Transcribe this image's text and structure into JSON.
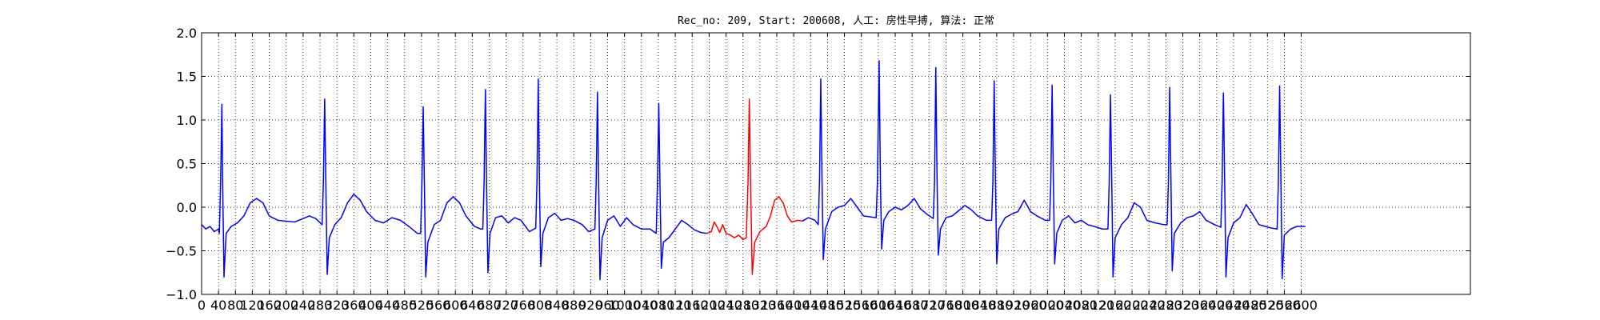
{
  "chart_data": {
    "type": "line",
    "title": "Rec_no: 209, Start: 200608, 人工: 房性早搏, 算法: 正常",
    "xlabel": "",
    "ylabel": "",
    "xlim": [
      0,
      3000
    ],
    "ylim": [
      -1.0,
      2.0
    ],
    "grid": true,
    "x_ticks": [
      0,
      40,
      80,
      120,
      160,
      200,
      240,
      280,
      320,
      360,
      400,
      440,
      480,
      520,
      560,
      600,
      640,
      680,
      720,
      760,
      800,
      840,
      880,
      920,
      960,
      1000,
      1040,
      1080,
      1120,
      1160,
      1200,
      1240,
      1280,
      1320,
      1360,
      1400,
      1440,
      1480,
      1520,
      1560,
      1600,
      1640,
      1680,
      1720,
      1760,
      1800,
      1840,
      1880,
      1920,
      1960,
      2000,
      2040,
      2080,
      2120,
      2160,
      2200,
      2240,
      2280,
      2320,
      2360,
      2400,
      2440,
      2480,
      2520,
      2560,
      2600
    ],
    "x_tick_labels": [
      "0",
      "40",
      "80",
      "120",
      "160",
      "200",
      "240",
      "280",
      "320",
      "360",
      "400",
      "440",
      "480",
      "520",
      "560",
      "600",
      "640",
      "680",
      "720",
      "760",
      "800",
      "840",
      "880",
      "920",
      "960",
      "1000",
      "1040",
      "1080",
      "1120",
      "1160",
      "1200",
      "1240",
      "1280",
      "1320",
      "1360",
      "1400",
      "1440",
      "1480",
      "1520",
      "1560",
      "1600",
      "1640",
      "1680",
      "1720",
      "1760",
      "1800",
      "1840",
      "1880",
      "1920",
      "1960",
      "2000",
      "2040",
      "2080",
      "2120",
      "2160",
      "2200",
      "2240",
      "2280",
      "2320",
      "2360",
      "2400",
      "2440",
      "2480",
      "2520",
      "2560",
      "2600"
    ],
    "y_ticks": [
      -1.0,
      -0.5,
      0.0,
      0.5,
      1.0,
      1.5,
      2.0
    ],
    "y_tick_labels": [
      "−1.0",
      "−0.5",
      "0.0",
      "0.5",
      "1.0",
      "1.5",
      "2.0"
    ],
    "series": [
      {
        "color": "#0000ff",
        "points": [
          [
            0,
            -0.2
          ],
          [
            10,
            -0.25
          ],
          [
            20,
            -0.22
          ],
          [
            30,
            -0.28
          ],
          [
            40,
            -0.25
          ],
          [
            42,
            -0.3
          ],
          [
            45,
            0.3
          ],
          [
            48,
            1.18
          ],
          [
            50,
            0.2
          ],
          [
            53,
            -0.8
          ],
          [
            58,
            -0.3
          ],
          [
            70,
            -0.22
          ],
          [
            85,
            -0.18
          ],
          [
            100,
            -0.1
          ],
          [
            115,
            0.05
          ],
          [
            130,
            0.1
          ],
          [
            145,
            0.05
          ],
          [
            160,
            -0.1
          ],
          [
            180,
            -0.15
          ],
          [
            200,
            -0.16
          ],
          [
            220,
            -0.17
          ],
          [
            240,
            -0.13
          ],
          [
            255,
            -0.1
          ],
          [
            270,
            -0.13
          ],
          [
            285,
            -0.2
          ],
          [
            288,
            0.3
          ],
          [
            291,
            1.24
          ],
          [
            294,
            0.2
          ],
          [
            297,
            -0.77
          ],
          [
            302,
            -0.35
          ],
          [
            315,
            -0.2
          ],
          [
            330,
            -0.12
          ],
          [
            345,
            0.05
          ],
          [
            360,
            0.15
          ],
          [
            375,
            0.08
          ],
          [
            390,
            -0.05
          ],
          [
            410,
            -0.15
          ],
          [
            430,
            -0.18
          ],
          [
            450,
            -0.12
          ],
          [
            470,
            -0.15
          ],
          [
            490,
            -0.22
          ],
          [
            510,
            -0.3
          ],
          [
            518,
            -0.3
          ],
          [
            521,
            0.3
          ],
          [
            524,
            1.15
          ],
          [
            527,
            0.2
          ],
          [
            530,
            -0.8
          ],
          [
            535,
            -0.4
          ],
          [
            550,
            -0.2
          ],
          [
            565,
            -0.15
          ],
          [
            580,
            0.05
          ],
          [
            595,
            0.12
          ],
          [
            610,
            0.05
          ],
          [
            625,
            -0.1
          ],
          [
            645,
            -0.22
          ],
          [
            660,
            -0.25
          ],
          [
            665,
            -0.25
          ],
          [
            668,
            0.3
          ],
          [
            671,
            1.35
          ],
          [
            674,
            0.2
          ],
          [
            677,
            -0.75
          ],
          [
            682,
            -0.3
          ],
          [
            695,
            -0.12
          ],
          [
            710,
            -0.1
          ],
          [
            725,
            -0.18
          ],
          [
            740,
            -0.12
          ],
          [
            755,
            -0.15
          ],
          [
            775,
            -0.28
          ],
          [
            790,
            -0.24
          ],
          [
            793,
            0.3
          ],
          [
            796,
            1.47
          ],
          [
            799,
            0.2
          ],
          [
            802,
            -0.68
          ],
          [
            807,
            -0.3
          ],
          [
            820,
            -0.12
          ],
          [
            835,
            -0.07
          ],
          [
            850,
            -0.15
          ],
          [
            865,
            -0.13
          ],
          [
            880,
            -0.15
          ],
          [
            900,
            -0.2
          ],
          [
            915,
            -0.28
          ],
          [
            930,
            -0.25
          ],
          [
            933,
            0.3
          ],
          [
            936,
            1.32
          ],
          [
            939,
            0.2
          ],
          [
            942,
            -0.83
          ],
          [
            947,
            -0.35
          ],
          [
            960,
            -0.15
          ],
          [
            975,
            -0.1
          ],
          [
            990,
            -0.22
          ],
          [
            1005,
            -0.12
          ],
          [
            1020,
            -0.2
          ],
          [
            1040,
            -0.25
          ],
          [
            1060,
            -0.25
          ],
          [
            1075,
            -0.3
          ],
          [
            1078,
            0.3
          ],
          [
            1081,
            1.19
          ],
          [
            1084,
            0.2
          ],
          [
            1087,
            -0.7
          ],
          [
            1092,
            -0.4
          ],
          [
            1105,
            -0.35
          ],
          [
            1120,
            -0.25
          ],
          [
            1135,
            -0.15
          ],
          [
            1150,
            -0.2
          ],
          [
            1165,
            -0.26
          ],
          [
            1180,
            -0.29
          ],
          [
            1195,
            -0.3
          ]
        ]
      },
      {
        "color": "#ff0000",
        "points": [
          [
            1195,
            -0.3
          ],
          [
            1205,
            -0.28
          ],
          [
            1212,
            -0.17
          ],
          [
            1218,
            -0.22
          ],
          [
            1225,
            -0.29
          ],
          [
            1232,
            -0.2
          ],
          [
            1240,
            -0.3
          ],
          [
            1250,
            -0.32
          ],
          [
            1260,
            -0.35
          ],
          [
            1270,
            -0.32
          ],
          [
            1280,
            -0.37
          ],
          [
            1288,
            -0.35
          ],
          [
            1292,
            0.3
          ],
          [
            1295,
            1.24
          ],
          [
            1298,
            0.3
          ],
          [
            1302,
            -0.77
          ],
          [
            1308,
            -0.4
          ],
          [
            1320,
            -0.28
          ],
          [
            1335,
            -0.22
          ],
          [
            1345,
            -0.1
          ],
          [
            1355,
            0.08
          ],
          [
            1365,
            0.12
          ],
          [
            1375,
            0.05
          ],
          [
            1385,
            -0.1
          ],
          [
            1395,
            -0.17
          ],
          [
            1410,
            -0.15
          ],
          [
            1420,
            -0.16
          ]
        ]
      },
      {
        "color": "#0000ff",
        "points": [
          [
            1420,
            -0.16
          ],
          [
            1435,
            -0.12
          ],
          [
            1450,
            -0.15
          ],
          [
            1458,
            -0.2
          ],
          [
            1461,
            0.3
          ],
          [
            1464,
            1.47
          ],
          [
            1467,
            0.3
          ],
          [
            1470,
            -0.6
          ],
          [
            1475,
            -0.25
          ],
          [
            1490,
            -0.05
          ],
          [
            1505,
            0.0
          ],
          [
            1520,
            0.02
          ],
          [
            1535,
            0.1
          ],
          [
            1550,
            0.0
          ],
          [
            1565,
            -0.1
          ],
          [
            1595,
            -0.12
          ],
          [
            1598,
            0.3
          ],
          [
            1602,
            1.68
          ],
          [
            1605,
            0.3
          ],
          [
            1608,
            -0.48
          ],
          [
            1613,
            -0.15
          ],
          [
            1625,
            -0.05
          ],
          [
            1640,
            0.0
          ],
          [
            1655,
            -0.03
          ],
          [
            1670,
            0.02
          ],
          [
            1685,
            0.1
          ],
          [
            1700,
            -0.02
          ],
          [
            1715,
            -0.08
          ],
          [
            1730,
            -0.13
          ],
          [
            1733,
            0.3
          ],
          [
            1736,
            1.6
          ],
          [
            1739,
            0.3
          ],
          [
            1742,
            -0.55
          ],
          [
            1747,
            -0.25
          ],
          [
            1760,
            -0.12
          ],
          [
            1775,
            -0.1
          ],
          [
            1790,
            -0.04
          ],
          [
            1805,
            0.02
          ],
          [
            1820,
            -0.03
          ],
          [
            1835,
            -0.1
          ],
          [
            1855,
            -0.15
          ],
          [
            1868,
            -0.15
          ],
          [
            1871,
            0.3
          ],
          [
            1874,
            1.45
          ],
          [
            1877,
            0.3
          ],
          [
            1880,
            -0.65
          ],
          [
            1885,
            -0.25
          ],
          [
            1900,
            -0.12
          ],
          [
            1915,
            -0.08
          ],
          [
            1930,
            -0.05
          ],
          [
            1945,
            0.08
          ],
          [
            1960,
            -0.05
          ],
          [
            1975,
            -0.1
          ],
          [
            1995,
            -0.15
          ],
          [
            2005,
            -0.15
          ],
          [
            2008,
            0.3
          ],
          [
            2011,
            1.4
          ],
          [
            2014,
            0.3
          ],
          [
            2017,
            -0.65
          ],
          [
            2022,
            -0.3
          ],
          [
            2035,
            -0.15
          ],
          [
            2050,
            -0.1
          ],
          [
            2065,
            -0.18
          ],
          [
            2080,
            -0.15
          ],
          [
            2095,
            -0.2
          ],
          [
            2110,
            -0.22
          ],
          [
            2130,
            -0.25
          ],
          [
            2143,
            -0.25
          ],
          [
            2146,
            0.3
          ],
          [
            2149,
            1.29
          ],
          [
            2152,
            0.3
          ],
          [
            2155,
            -0.8
          ],
          [
            2160,
            -0.35
          ],
          [
            2175,
            -0.2
          ],
          [
            2190,
            -0.12
          ],
          [
            2205,
            0.05
          ],
          [
            2220,
            0.0
          ],
          [
            2235,
            -0.15
          ],
          [
            2255,
            -0.18
          ],
          [
            2275,
            -0.2
          ],
          [
            2283,
            -0.2
          ],
          [
            2286,
            0.3
          ],
          [
            2289,
            1.37
          ],
          [
            2292,
            0.3
          ],
          [
            2295,
            -0.73
          ],
          [
            2300,
            -0.3
          ],
          [
            2315,
            -0.18
          ],
          [
            2330,
            -0.12
          ],
          [
            2345,
            -0.1
          ],
          [
            2360,
            -0.05
          ],
          [
            2375,
            -0.15
          ],
          [
            2395,
            -0.2
          ],
          [
            2410,
            -0.23
          ],
          [
            2413,
            0.3
          ],
          [
            2416,
            1.31
          ],
          [
            2419,
            0.3
          ],
          [
            2422,
            -0.8
          ],
          [
            2427,
            -0.35
          ],
          [
            2440,
            -0.18
          ],
          [
            2455,
            -0.12
          ],
          [
            2470,
            0.03
          ],
          [
            2485,
            -0.08
          ],
          [
            2500,
            -0.2
          ],
          [
            2515,
            -0.22
          ],
          [
            2530,
            -0.24
          ],
          [
            2543,
            -0.25
          ],
          [
            2546,
            0.3
          ],
          [
            2549,
            1.39
          ],
          [
            2552,
            0.3
          ],
          [
            2555,
            -0.82
          ],
          [
            2560,
            -0.32
          ],
          [
            2575,
            -0.25
          ],
          [
            2590,
            -0.22
          ],
          [
            2600,
            -0.22
          ],
          [
            2610,
            -0.22
          ]
        ]
      }
    ]
  }
}
